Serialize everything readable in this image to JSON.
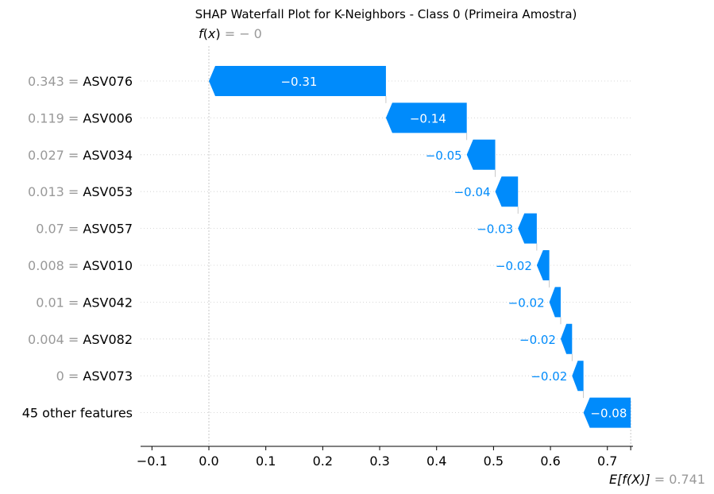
{
  "chart_data": {
    "type": "waterfall",
    "title": "SHAP Waterfall Plot for K-Neighbors - Class 0 (Primeira Amostra)",
    "fx": {
      "label_func": "f",
      "label_arg": "x",
      "value_text": "= − 0",
      "value": 0.0
    },
    "expected": {
      "label_func": "E[f(X)]",
      "value_text": "= 0.741",
      "value": 0.741
    },
    "xlim": [
      -0.12,
      0.745
    ],
    "ticks": [
      {
        "value": -0.1,
        "label": "−0.1"
      },
      {
        "value": 0.0,
        "label": "0.0"
      },
      {
        "value": 0.1,
        "label": "0.1"
      },
      {
        "value": 0.2,
        "label": "0.2"
      },
      {
        "value": 0.3,
        "label": "0.3"
      },
      {
        "value": 0.4,
        "label": "0.4"
      },
      {
        "value": 0.5,
        "label": "0.5"
      },
      {
        "value": 0.6,
        "label": "0.6"
      },
      {
        "value": 0.7,
        "label": "0.7"
      }
    ],
    "features": [
      {
        "value_text": "0.343 =",
        "name": "ASV076",
        "shap": -0.311,
        "label": "−0.31",
        "label_inside": true
      },
      {
        "value_text": "0.119 =",
        "name": "ASV006",
        "shap": -0.142,
        "label": "−0.14",
        "label_inside": true
      },
      {
        "value_text": "0.027 =",
        "name": "ASV034",
        "shap": -0.05,
        "label": "−0.05",
        "label_inside": false
      },
      {
        "value_text": "0.013 =",
        "name": "ASV053",
        "shap": -0.04,
        "label": "−0.04",
        "label_inside": false
      },
      {
        "value_text": "0.07 =",
        "name": "ASV057",
        "shap": -0.033,
        "label": "−0.03",
        "label_inside": false
      },
      {
        "value_text": "0.008 =",
        "name": "ASV010",
        "shap": -0.022,
        "label": "−0.02",
        "label_inside": false
      },
      {
        "value_text": "0.01 =",
        "name": "ASV042",
        "shap": -0.02,
        "label": "−0.02",
        "label_inside": false
      },
      {
        "value_text": "0.004 =",
        "name": "ASV082",
        "shap": -0.02,
        "label": "−0.02",
        "label_inside": false
      },
      {
        "value_text": "0 =",
        "name": "ASV073",
        "shap": -0.02,
        "label": "−0.02",
        "label_inside": false
      },
      {
        "value_text": "",
        "name": "45 other features",
        "shap": -0.083,
        "label": "−0.08",
        "label_inside": true
      }
    ],
    "colors": {
      "negative": "#008bfb",
      "label_outside": "#008bfb",
      "label_inside": "#ffffff",
      "value_text": "#999999",
      "name_text": "#000000",
      "grid": "#cccccc"
    },
    "grid": true
  }
}
